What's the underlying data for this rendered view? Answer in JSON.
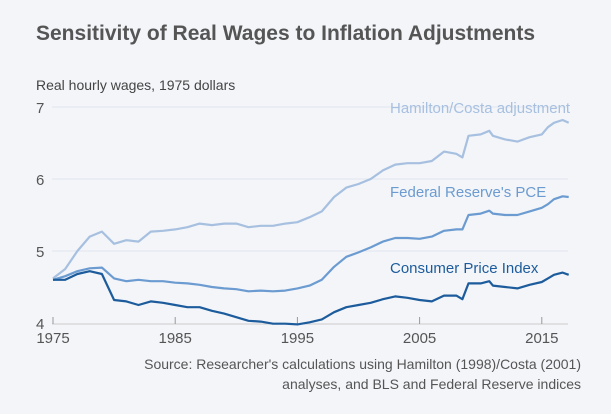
{
  "chart_data": {
    "type": "line",
    "title": "Sensitivity of Real Wages to Inflation Adjustments",
    "ylabel": "Real hourly wages, 1975 dollars",
    "xlabel": "",
    "xlim": [
      1975,
      2017.2
    ],
    "ylim": [
      4,
      7
    ],
    "xticks": [
      "1975",
      "1985",
      "1995",
      "2005",
      "2015"
    ],
    "yticks": [
      "4",
      "5",
      "6",
      "7"
    ],
    "grid": "horizontal",
    "source": "Source: Researcher's calculations using Hamilton (1998)/Costa (2001) analyses, and BLS and Federal Reserve indices",
    "x": [
      1975,
      1976,
      1977,
      1978,
      1979,
      1980,
      1981,
      1982,
      1983,
      1984,
      1985,
      1986,
      1987,
      1988,
      1989,
      1990,
      1991,
      1992,
      1993,
      1994,
      1995,
      1996,
      1997,
      1998,
      1999,
      2000,
      2001,
      2002,
      2003,
      2004,
      2005,
      2006,
      2007,
      2008,
      2008.5,
      2009,
      2010,
      2010.7,
      2011,
      2012,
      2013,
      2014,
      2015,
      2015.5,
      2016,
      2016.7,
      2017.2
    ],
    "series": [
      {
        "name": "Hamilton/Costa adjustment",
        "color": "#a7c0e0",
        "values": [
          4.62,
          4.75,
          5.0,
          5.2,
          5.27,
          5.1,
          5.15,
          5.13,
          5.27,
          5.28,
          5.3,
          5.33,
          5.38,
          5.36,
          5.38,
          5.38,
          5.33,
          5.35,
          5.35,
          5.38,
          5.4,
          5.47,
          5.55,
          5.75,
          5.88,
          5.93,
          6.0,
          6.12,
          6.2,
          6.22,
          6.22,
          6.25,
          6.38,
          6.35,
          6.3,
          6.6,
          6.62,
          6.67,
          6.6,
          6.55,
          6.52,
          6.58,
          6.62,
          6.72,
          6.78,
          6.82,
          6.78
        ]
      },
      {
        "name": "Federal Reserve's PCE",
        "color": "#6b9bd0",
        "values": [
          4.6,
          4.65,
          4.72,
          4.76,
          4.77,
          4.62,
          4.58,
          4.6,
          4.58,
          4.58,
          4.56,
          4.55,
          4.53,
          4.5,
          4.48,
          4.47,
          4.44,
          4.45,
          4.44,
          4.45,
          4.48,
          4.52,
          4.6,
          4.78,
          4.92,
          4.98,
          5.05,
          5.13,
          5.18,
          5.18,
          5.17,
          5.2,
          5.28,
          5.3,
          5.3,
          5.5,
          5.52,
          5.56,
          5.52,
          5.5,
          5.5,
          5.55,
          5.6,
          5.65,
          5.72,
          5.76,
          5.75
        ]
      },
      {
        "name": "Consumer Price Index",
        "color": "#1d5c9c",
        "values": [
          4.6,
          4.6,
          4.68,
          4.72,
          4.68,
          4.32,
          4.3,
          4.25,
          4.3,
          4.28,
          4.25,
          4.22,
          4.22,
          4.17,
          4.13,
          4.08,
          4.03,
          4.02,
          3.99,
          3.99,
          3.98,
          4.01,
          4.05,
          4.15,
          4.22,
          4.25,
          4.28,
          4.33,
          4.37,
          4.35,
          4.32,
          4.3,
          4.38,
          4.38,
          4.33,
          4.55,
          4.55,
          4.58,
          4.52,
          4.5,
          4.48,
          4.53,
          4.57,
          4.62,
          4.67,
          4.7,
          4.67
        ]
      }
    ]
  }
}
